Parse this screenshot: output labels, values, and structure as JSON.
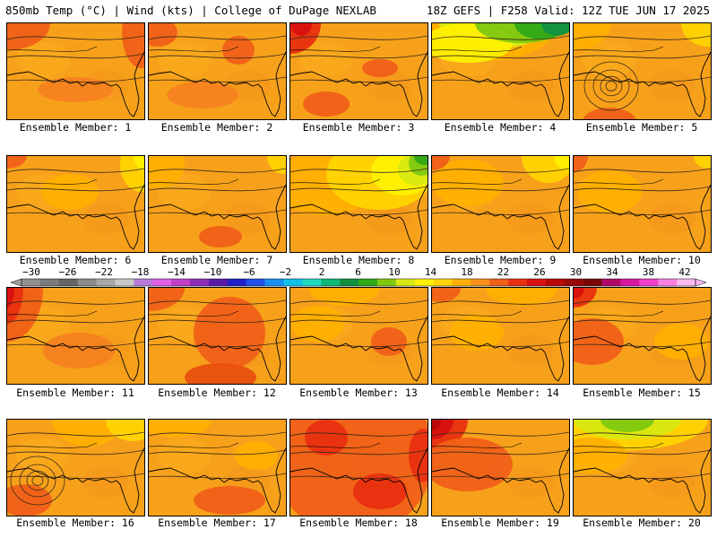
{
  "header": {
    "left": "850mb Temp (°C) | Wind (kts) | College of DuPage NEXLAB",
    "right": "18Z GEFS | F258 Valid: 12Z TUE JUN 17 2025"
  },
  "colorbar": {
    "labels": [
      "−30",
      "−26",
      "−22",
      "−18",
      "−14",
      "−10",
      "−6",
      "−2",
      "2",
      "6",
      "10",
      "14",
      "18",
      "22",
      "26",
      "30",
      "34",
      "38",
      "42"
    ],
    "colors": [
      "#909090",
      "#7a7a7a",
      "#656565",
      "#8a8a8a",
      "#a8a8a8",
      "#c8c8c8",
      "#b87ad8",
      "#e060e8",
      "#c040c8",
      "#9030b8",
      "#5a1aa8",
      "#2020c8",
      "#2050e8",
      "#1890f0",
      "#10c0e8",
      "#20d8c0",
      "#10b878",
      "#109040",
      "#30a818",
      "#80c810",
      "#d8e810",
      "#fff000",
      "#ffd400",
      "#ffb000",
      "#f89018",
      "#f06018",
      "#e83010",
      "#d81010",
      "#b80808",
      "#980808",
      "#780808",
      "#b00868",
      "#d818a0",
      "#f040c8",
      "#f880e0",
      "#f8b8f0"
    ]
  },
  "members": [
    {
      "label": "Ensemble Member: 1",
      "blobs": [
        [
          "#f06018",
          0,
          0,
          48,
          30
        ],
        [
          "#f06018",
          150,
          10,
          22,
          40
        ],
        [
          "#f5821f",
          76,
          74,
          42,
          14
        ]
      ]
    },
    {
      "label": "Ensemble Member: 2",
      "blobs": [
        [
          "#f06018",
          10,
          10,
          22,
          16
        ],
        [
          "#f06018",
          100,
          30,
          18,
          16
        ],
        [
          "#f5821f",
          60,
          80,
          40,
          15
        ]
      ]
    },
    {
      "label": "Ensemble Member: 3",
      "blobs": [
        [
          "#e83010",
          0,
          0,
          34,
          34
        ],
        [
          "#d81010",
          12,
          0,
          12,
          14
        ],
        [
          "#f06018",
          40,
          90,
          26,
          14
        ],
        [
          "#f06018",
          100,
          50,
          20,
          10
        ]
      ]
    },
    {
      "label": "Ensemble Member: 4",
      "blobs": [
        [
          "#ffb000",
          60,
          0,
          80,
          42
        ],
        [
          "#d8e810",
          70,
          0,
          62,
          28
        ],
        [
          "#fff000",
          40,
          22,
          50,
          22
        ],
        [
          "#80c810",
          100,
          0,
          52,
          22
        ],
        [
          "#30a818",
          122,
          0,
          30,
          18
        ],
        [
          "#109040",
          140,
          0,
          18,
          14
        ]
      ]
    },
    {
      "label": "Ensemble Member: 5",
      "blobs": [
        [
          "#ffb000",
          0,
          0,
          42,
          30
        ],
        [
          "#ffd400",
          150,
          0,
          30,
          26
        ],
        [
          "#f06018",
          40,
          110,
          30,
          16
        ]
      ]
    },
    {
      "label": "Ensemble Member: 6",
      "blobs": [
        [
          "#ffd400",
          150,
          10,
          24,
          30
        ],
        [
          "#fff000",
          155,
          0,
          14,
          16
        ],
        [
          "#ffb000",
          70,
          40,
          32,
          20
        ],
        [
          "#f06018",
          0,
          0,
          22,
          14
        ]
      ]
    },
    {
      "label": "Ensemble Member: 7",
      "blobs": [
        [
          "#ffb000",
          10,
          10,
          30,
          26
        ],
        [
          "#ffd400",
          150,
          0,
          18,
          20
        ],
        [
          "#f06018",
          80,
          90,
          24,
          12
        ]
      ]
    },
    {
      "label": "Ensemble Member: 8",
      "blobs": [
        [
          "#ffb000",
          40,
          30,
          56,
          36
        ],
        [
          "#ffd400",
          100,
          20,
          60,
          40
        ],
        [
          "#fff000",
          125,
          18,
          35,
          26
        ],
        [
          "#d8e810",
          140,
          15,
          20,
          18
        ],
        [
          "#80c810",
          146,
          8,
          14,
          14
        ],
        [
          "#30a818",
          150,
          0,
          12,
          10
        ]
      ]
    },
    {
      "label": "Ensemble Member: 9",
      "blobs": [
        [
          "#ffb000",
          40,
          30,
          40,
          26
        ],
        [
          "#ffd400",
          130,
          0,
          30,
          30
        ],
        [
          "#fff000",
          150,
          0,
          14,
          16
        ],
        [
          "#f06018",
          0,
          0,
          20,
          16
        ]
      ]
    },
    {
      "label": "Ensemble Member: 10",
      "blobs": [
        [
          "#ffb000",
          40,
          40,
          36,
          24
        ],
        [
          "#f06018",
          0,
          0,
          16,
          18
        ],
        [
          "#ffd400",
          150,
          0,
          16,
          14
        ]
      ]
    },
    {
      "label": "Ensemble Member: 11",
      "blobs": [
        [
          "#f06018",
          0,
          0,
          40,
          60
        ],
        [
          "#e83010",
          0,
          0,
          18,
          40
        ],
        [
          "#d81010",
          0,
          0,
          8,
          22
        ],
        [
          "#f5821f",
          80,
          70,
          40,
          20
        ]
      ]
    },
    {
      "label": "Ensemble Member: 12",
      "blobs": [
        [
          "#f06018",
          0,
          0,
          40,
          26
        ],
        [
          "#f06018",
          90,
          50,
          40,
          40
        ],
        [
          "#e8500f",
          80,
          100,
          40,
          16
        ]
      ]
    },
    {
      "label": "Ensemble Member: 13",
      "blobs": [
        [
          "#ffb000",
          60,
          0,
          40,
          20
        ],
        [
          "#ffb000",
          30,
          40,
          30,
          20
        ],
        [
          "#f06018",
          110,
          60,
          20,
          16
        ]
      ]
    },
    {
      "label": "Ensemble Member: 14",
      "blobs": [
        [
          "#ffb000",
          100,
          0,
          40,
          20
        ],
        [
          "#f06018",
          10,
          0,
          22,
          16
        ],
        [
          "#ffb000",
          50,
          50,
          30,
          20
        ]
      ]
    },
    {
      "label": "Ensemble Member: 15",
      "blobs": [
        [
          "#e83010",
          0,
          0,
          26,
          22
        ],
        [
          "#d81010",
          0,
          0,
          12,
          12
        ],
        [
          "#f06018",
          20,
          60,
          36,
          26
        ],
        [
          "#ffb000",
          120,
          60,
          30,
          20
        ]
      ]
    },
    {
      "label": "Ensemble Member: 16",
      "blobs": [
        [
          "#ffb000",
          90,
          0,
          40,
          30
        ],
        [
          "#ffd400",
          140,
          0,
          30,
          24
        ],
        [
          "#f06018",
          20,
          90,
          30,
          18
        ]
      ]
    },
    {
      "label": "Ensemble Member: 17",
      "blobs": [
        [
          "#ffb000",
          30,
          0,
          40,
          20
        ],
        [
          "#f06018",
          90,
          90,
          40,
          16
        ],
        [
          "#ffb000",
          120,
          40,
          24,
          16
        ]
      ]
    },
    {
      "label": "Ensemble Member: 18",
      "blobs": [
        [
          "#f06018",
          70,
          40,
          90,
          90
        ],
        [
          "#e83010",
          40,
          20,
          24,
          20
        ],
        [
          "#e83010",
          100,
          80,
          30,
          20
        ],
        [
          "#e83010",
          148,
          40,
          16,
          30
        ]
      ]
    },
    {
      "label": "Ensemble Member: 19",
      "blobs": [
        [
          "#e83010",
          0,
          0,
          40,
          34
        ],
        [
          "#d81010",
          0,
          0,
          24,
          22
        ],
        [
          "#b80808",
          0,
          0,
          10,
          12
        ],
        [
          "#f06018",
          40,
          50,
          50,
          30
        ]
      ]
    },
    {
      "label": "Ensemble Member: 20",
      "blobs": [
        [
          "#ffd400",
          60,
          0,
          90,
          34
        ],
        [
          "#d8e810",
          60,
          0,
          60,
          22
        ],
        [
          "#80c810",
          60,
          0,
          30,
          14
        ],
        [
          "#ffb000",
          20,
          40,
          40,
          20
        ]
      ]
    }
  ]
}
